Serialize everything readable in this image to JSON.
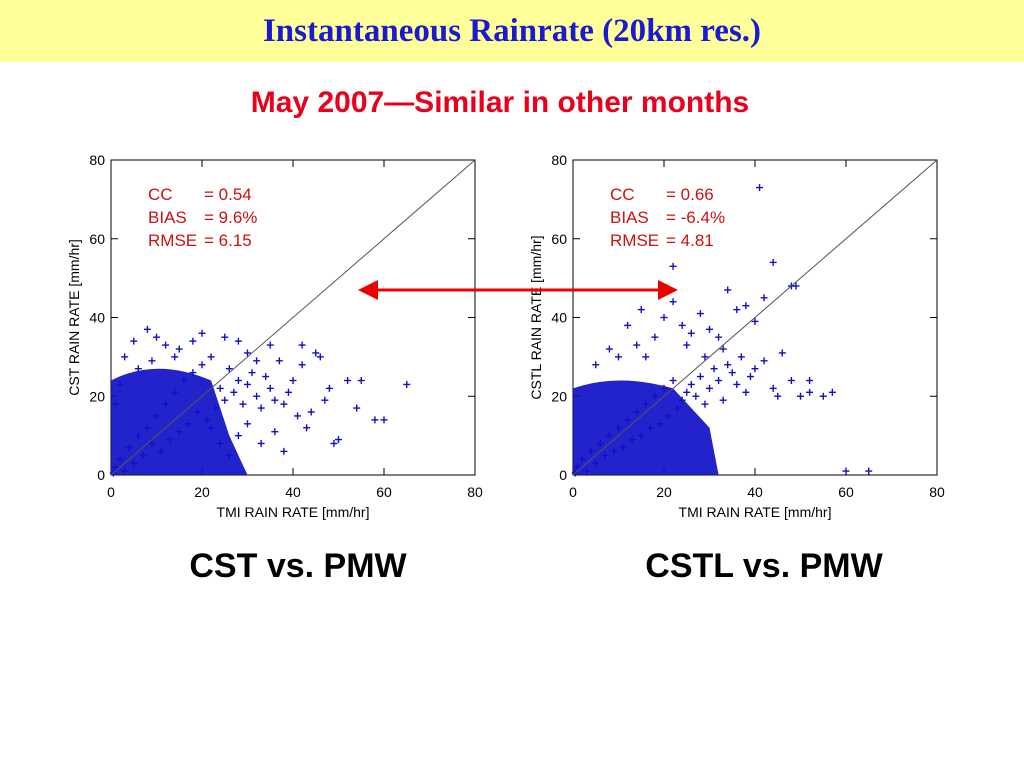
{
  "slide": {
    "title": "Instantaneous Rainrate (20km res.)",
    "subtitle": "May 2007—Similar in other months",
    "title_bg": "#ffff99",
    "title_color": "#1a1ad0",
    "subtitle_color": "#e8001c",
    "arrow_color": "#ee0000",
    "arrow_icon": "double-headed-arrow"
  },
  "chart_data": [
    {
      "type": "scatter",
      "caption": "CST vs. PMW",
      "xlabel": "TMI RAIN RATE [mm/hr]",
      "ylabel": "CST RAIN RATE [mm/hr]",
      "xlim": [
        0,
        80
      ],
      "ylim": [
        0,
        80
      ],
      "xticks": [
        0,
        20,
        40,
        60,
        80
      ],
      "yticks": [
        0,
        20,
        40,
        60,
        80
      ],
      "marker": "+",
      "marker_color": "#1010c8",
      "stats_color": "#cc1111",
      "one_to_one_line": true,
      "stats": [
        {
          "label": "CC",
          "value": "= 0.54"
        },
        {
          "label": "BIAS",
          "value": "=  9.6%"
        },
        {
          "label": "RMSE",
          "value": "=  6.15"
        }
      ],
      "points": [
        [
          0.5,
          0.5
        ],
        [
          1,
          2
        ],
        [
          2,
          4
        ],
        [
          3,
          1
        ],
        [
          4,
          7
        ],
        [
          5,
          3
        ],
        [
          6,
          10
        ],
        [
          7,
          5
        ],
        [
          8,
          12
        ],
        [
          9,
          8
        ],
        [
          10,
          15
        ],
        [
          11,
          6
        ],
        [
          12,
          18
        ],
        [
          13,
          9
        ],
        [
          14,
          21
        ],
        [
          15,
          11
        ],
        [
          16,
          24
        ],
        [
          17,
          13
        ],
        [
          18,
          26
        ],
        [
          19,
          16
        ],
        [
          20,
          28
        ],
        [
          21,
          14
        ],
        [
          22,
          30
        ],
        [
          23,
          17
        ],
        [
          24,
          22
        ],
        [
          25,
          19
        ],
        [
          26,
          27
        ],
        [
          27,
          21
        ],
        [
          28,
          24
        ],
        [
          29,
          18
        ],
        [
          30,
          23
        ],
        [
          31,
          26
        ],
        [
          32,
          20
        ],
        [
          33,
          17
        ],
        [
          34,
          25
        ],
        [
          35,
          22
        ],
        [
          36,
          19
        ],
        [
          37,
          29
        ],
        [
          38,
          18
        ],
        [
          39,
          21
        ],
        [
          40,
          24
        ],
        [
          42,
          28
        ],
        [
          44,
          16
        ],
        [
          46,
          30
        ],
        [
          48,
          22
        ],
        [
          50,
          9
        ],
        [
          52,
          24
        ],
        [
          54,
          17
        ],
        [
          58,
          14
        ],
        [
          65,
          23
        ],
        [
          3,
          30
        ],
        [
          5,
          34
        ],
        [
          8,
          37
        ],
        [
          10,
          35
        ],
        [
          12,
          33
        ],
        [
          15,
          32
        ],
        [
          18,
          34
        ],
        [
          20,
          36
        ],
        [
          25,
          35
        ],
        [
          28,
          34
        ],
        [
          30,
          31
        ],
        [
          32,
          29
        ],
        [
          35,
          33
        ],
        [
          42,
          33
        ],
        [
          45,
          31
        ],
        [
          47,
          19
        ],
        [
          49,
          8
        ],
        [
          55,
          24
        ],
        [
          60,
          14
        ],
        [
          1,
          18
        ],
        [
          2,
          23
        ],
        [
          6,
          27
        ],
        [
          9,
          29
        ],
        [
          14,
          30
        ],
        [
          22,
          12
        ],
        [
          24,
          8
        ],
        [
          26,
          5
        ],
        [
          28,
          10
        ],
        [
          30,
          13
        ],
        [
          33,
          8
        ],
        [
          36,
          11
        ],
        [
          38,
          6
        ],
        [
          41,
          15
        ],
        [
          43,
          12
        ]
      ]
    },
    {
      "type": "scatter",
      "caption": "CSTL vs. PMW",
      "xlabel": "TMI RAIN RATE [mm/hr]",
      "ylabel": "CSTL RAIN RATE [mm/hr]",
      "xlim": [
        0,
        80
      ],
      "ylim": [
        0,
        80
      ],
      "xticks": [
        0,
        20,
        40,
        60,
        80
      ],
      "yticks": [
        0,
        20,
        40,
        60,
        80
      ],
      "marker": "+",
      "marker_color": "#1010c8",
      "stats_color": "#cc1111",
      "one_to_one_line": true,
      "stats": [
        {
          "label": "CC",
          "value": "= 0.66"
        },
        {
          "label": "BIAS",
          "value": "= -6.4%"
        },
        {
          "label": "RMSE",
          "value": "=  4.81"
        }
      ],
      "points": [
        [
          0.5,
          0.5
        ],
        [
          1,
          2
        ],
        [
          2,
          4
        ],
        [
          3,
          1
        ],
        [
          4,
          6
        ],
        [
          5,
          3
        ],
        [
          6,
          8
        ],
        [
          7,
          5
        ],
        [
          8,
          10
        ],
        [
          9,
          6
        ],
        [
          10,
          12
        ],
        [
          11,
          7
        ],
        [
          12,
          14
        ],
        [
          13,
          9
        ],
        [
          14,
          16
        ],
        [
          15,
          10
        ],
        [
          16,
          18
        ],
        [
          17,
          12
        ],
        [
          18,
          20
        ],
        [
          19,
          13
        ],
        [
          20,
          22
        ],
        [
          21,
          15
        ],
        [
          22,
          24
        ],
        [
          23,
          17
        ],
        [
          24,
          19
        ],
        [
          25,
          21
        ],
        [
          26,
          23
        ],
        [
          27,
          20
        ],
        [
          28,
          25
        ],
        [
          29,
          18
        ],
        [
          30,
          22
        ],
        [
          31,
          27
        ],
        [
          32,
          24
        ],
        [
          33,
          19
        ],
        [
          34,
          28
        ],
        [
          35,
          26
        ],
        [
          36,
          23
        ],
        [
          37,
          30
        ],
        [
          38,
          21
        ],
        [
          39,
          25
        ],
        [
          40,
          27
        ],
        [
          42,
          29
        ],
        [
          44,
          22
        ],
        [
          46,
          31
        ],
        [
          48,
          24
        ],
        [
          52,
          21
        ],
        [
          55,
          20
        ],
        [
          57,
          21
        ],
        [
          60,
          1
        ],
        [
          65,
          1
        ],
        [
          5,
          28
        ],
        [
          8,
          32
        ],
        [
          12,
          38
        ],
        [
          15,
          42
        ],
        [
          18,
          35
        ],
        [
          20,
          40
        ],
        [
          22,
          44
        ],
        [
          24,
          38
        ],
        [
          26,
          36
        ],
        [
          28,
          41
        ],
        [
          30,
          37
        ],
        [
          32,
          35
        ],
        [
          34,
          47
        ],
        [
          36,
          42
        ],
        [
          38,
          43
        ],
        [
          40,
          39
        ],
        [
          42,
          45
        ],
        [
          44,
          54
        ],
        [
          48,
          48
        ],
        [
          49,
          48
        ],
        [
          41,
          73
        ],
        [
          22,
          53
        ],
        [
          10,
          30
        ],
        [
          14,
          33
        ],
        [
          16,
          30
        ],
        [
          25,
          33
        ],
        [
          29,
          30
        ],
        [
          33,
          32
        ],
        [
          45,
          20
        ],
        [
          50,
          20
        ],
        [
          52,
          24
        ]
      ]
    }
  ]
}
